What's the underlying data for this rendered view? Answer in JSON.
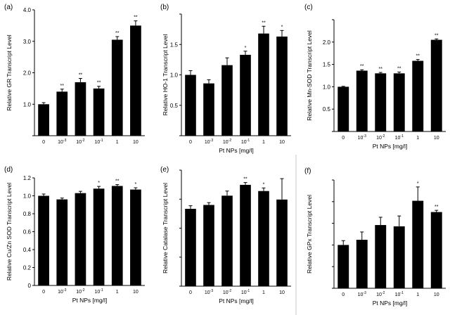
{
  "chart_data": [
    {
      "type": "bar",
      "panel_label": "(a)",
      "categories": [
        "0",
        "10-3",
        "10-2",
        "10-1",
        "1",
        "10"
      ],
      "values": [
        1.0,
        1.4,
        1.7,
        1.5,
        3.05,
        3.5
      ],
      "errors": [
        0.05,
        0.08,
        0.12,
        0.07,
        0.1,
        0.15
      ],
      "annotations": [
        "",
        "**",
        "**",
        "**",
        "**",
        "**"
      ],
      "ylabel": "Relative GR Transcript Level",
      "xlabel": "",
      "ylim": [
        0,
        4
      ],
      "yticks": [
        "",
        "1.0",
        "2.0",
        "3.0",
        "4.0"
      ]
    },
    {
      "type": "bar",
      "panel_label": "(b)",
      "categories": [
        "0",
        "10-3",
        "10-2",
        "10-1",
        "1",
        "10"
      ],
      "values": [
        1.0,
        0.86,
        1.16,
        1.33,
        1.68,
        1.63
      ],
      "errors": [
        0.07,
        0.06,
        0.12,
        0.06,
        0.12,
        0.1
      ],
      "annotations": [
        "",
        "",
        "",
        "*",
        "**",
        "*"
      ],
      "ylabel": "Relative HO-1  Transcript Level",
      "xlabel": "Pt NPs [mg/l]",
      "ylim": [
        0,
        2
      ],
      "yticks": [
        "",
        "0.5",
        "1.0",
        "1.5",
        ""
      ]
    },
    {
      "type": "bar",
      "panel_label": "(c)",
      "categories": [
        "0",
        "10-3",
        "10-2",
        "10-1",
        "1",
        "10"
      ],
      "values": [
        1.0,
        1.36,
        1.3,
        1.3,
        1.58,
        2.05
      ],
      "errors": [
        0.01,
        0.02,
        0.02,
        0.03,
        0.03,
        0.02
      ],
      "annotations": [
        "",
        "**",
        "**",
        "**",
        "**",
        "**"
      ],
      "ylabel": "Relative Mn-SOD Transcript Level",
      "xlabel": "Pt NPs [mg/l]",
      "ylim": [
        0,
        2.5
      ],
      "yticks": [
        "",
        "0.5",
        "1.0",
        "1.5",
        "2.0",
        ""
      ]
    },
    {
      "type": "bar",
      "panel_label": "(d)",
      "categories": [
        "0",
        "10-3",
        "10-2",
        "10-1",
        "1",
        "10"
      ],
      "values": [
        1.0,
        0.96,
        1.03,
        1.08,
        1.11,
        1.07
      ],
      "errors": [
        0.02,
        0.015,
        0.02,
        0.025,
        0.015,
        0.02
      ],
      "annotations": [
        "",
        "",
        "",
        "*",
        "**",
        "*"
      ],
      "ylabel": "Relative Cu/Zn SOD Transcript Level",
      "xlabel": "Pt NPs [mg/l]",
      "ylim": [
        0,
        1.2
      ],
      "yticks": [
        "0",
        "0.2",
        "0.4",
        "0.6",
        "0.8",
        "1.0",
        "1.2"
      ]
    },
    {
      "type": "bar",
      "panel_label": "(e)",
      "categories": [
        "0",
        "10-3",
        "10-2",
        "10-1",
        "1",
        "10"
      ],
      "values": [
        1.0,
        1.05,
        1.17,
        1.31,
        1.23,
        1.12
      ],
      "errors": [
        0.04,
        0.03,
        0.06,
        0.03,
        0.04,
        0.27
      ],
      "annotations": [
        "",
        "",
        "",
        "**",
        "*",
        ""
      ],
      "ylabel": "Relative Catalase Transcript Level",
      "xlabel": "Pt NPs [mg/l]",
      "ylim": [
        0,
        1.5
      ],
      "yticks": [
        "",
        "",
        "",
        "",
        ""
      ]
    },
    {
      "type": "bar",
      "panel_label": "(f)",
      "categories": [
        "0",
        "10-3",
        "10-2",
        "10-1",
        "1",
        "10"
      ],
      "values": [
        1.0,
        1.12,
        1.46,
        1.43,
        2.02,
        1.76
      ],
      "errors": [
        0.1,
        0.18,
        0.18,
        0.24,
        0.32,
        0.04
      ],
      "annotations": [
        "",
        "",
        "",
        "",
        "*",
        "**"
      ],
      "ylabel": "Relative GPx Transcript Level",
      "xlabel": "Pt NPs [mg/l]",
      "ylim": [
        0,
        2.5
      ],
      "yticks": [
        "",
        "",
        "",
        "",
        "",
        ""
      ]
    }
  ]
}
